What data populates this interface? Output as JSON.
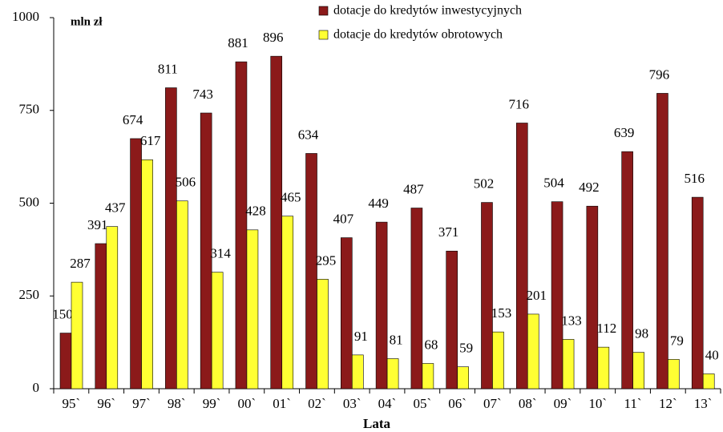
{
  "chart_data": {
    "type": "bar",
    "ylabel": "mln zł",
    "xlabel": "Lata",
    "categories": [
      "95`",
      "96`",
      "97`",
      "98`",
      "99`",
      "00`",
      "01`",
      "02`",
      "03`",
      "04`",
      "05`",
      "06`",
      "07`",
      "08`",
      "09`",
      "10`",
      "11`",
      "12`",
      "13`"
    ],
    "series": [
      {
        "name": "dotacje do kredytów inwestycyjnych",
        "color": "#8b1a1a",
        "values": [
          150,
          391,
          674,
          811,
          743,
          881,
          896,
          634,
          407,
          449,
          487,
          371,
          502,
          716,
          504,
          492,
          639,
          796,
          516
        ]
      },
      {
        "name": "dotacje do kredytów obrotowych",
        "color": "#ffff33",
        "values": [
          287,
          437,
          617,
          506,
          314,
          428,
          465,
          295,
          91,
          81,
          68,
          59,
          153,
          201,
          133,
          112,
          98,
          79,
          40
        ]
      }
    ],
    "ylim": [
      0,
      1000
    ],
    "yticks": [
      0,
      250,
      500,
      750,
      1000
    ],
    "grid": false,
    "legend": "top-right"
  }
}
